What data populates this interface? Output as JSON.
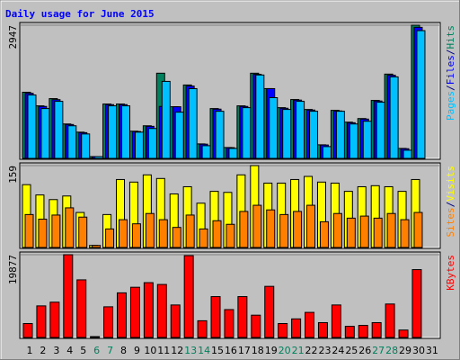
{
  "title": "Daily usage for June 2015",
  "legend_separator": "/",
  "categories": [
    "1",
    "2",
    "3",
    "4",
    "5",
    "6",
    "7",
    "8",
    "9",
    "10",
    "11",
    "12",
    "13",
    "14",
    "15",
    "16",
    "17",
    "18",
    "19",
    "20",
    "21",
    "22",
    "23",
    "24",
    "25",
    "26",
    "27",
    "28",
    "29",
    "30",
    "31"
  ],
  "category_colors": [
    "#000000",
    "#000000",
    "#000000",
    "#000000",
    "#000000",
    "#00805c",
    "#00805c",
    "#000000",
    "#000000",
    "#000000",
    "#000000",
    "#000000",
    "#00805c",
    "#00805c",
    "#000000",
    "#000000",
    "#000000",
    "#000000",
    "#000000",
    "#00805c",
    "#00805c",
    "#000000",
    "#000000",
    "#000000",
    "#000000",
    "#000000",
    "#00805c",
    "#00805c",
    "#000000",
    "#000000",
    "#000000"
  ],
  "chart_data": [
    {
      "type": "bar",
      "ylim": [
        0,
        2947
      ],
      "yticks": [
        2947
      ],
      "grid": true,
      "series": [
        {
          "name": "Hits",
          "color": "#00805c",
          "values": [
            1464,
            1163,
            1323,
            762,
            581,
            40,
            1203,
            1203,
            602,
            722,
            1885,
            1143,
            1624,
            321,
            1103,
            241,
            1163,
            1885,
            1544,
            1123,
            1303,
            1083,
            301,
            1063,
            802,
            882,
            1283,
            1865,
            221,
            2947,
            null
          ]
        },
        {
          "name": "Files",
          "color": "#0000ff",
          "values": [
            1440,
            1150,
            1300,
            750,
            570,
            40,
            1190,
            1190,
            595,
            710,
            1150,
            1143,
            1600,
            315,
            1090,
            238,
            1150,
            1860,
            1544,
            1110,
            1290,
            1070,
            296,
            1050,
            790,
            870,
            1270,
            1840,
            215,
            2900,
            null
          ]
        },
        {
          "name": "Pages",
          "color": "#00c0ff",
          "values": [
            1403,
            1103,
            1263,
            722,
            541,
            40,
            1163,
            1163,
            581,
            662,
            1704,
            1023,
            1544,
            281,
            1043,
            221,
            1123,
            1845,
            1344,
            1083,
            1263,
            1043,
            261,
            1043,
            762,
            822,
            1243,
            1804,
            181,
            2827,
            null
          ]
        }
      ]
    },
    {
      "type": "bar",
      "ylim": [
        0,
        159
      ],
      "yticks": [
        159
      ],
      "grid": true,
      "series": [
        {
          "name": "Visits",
          "color": "#ffff00",
          "values": [
            122,
            102,
            93,
            100,
            68,
            4,
            64,
            132,
            127,
            141,
            134,
            104,
            118,
            86,
            109,
            107,
            141,
            159,
            125,
            125,
            132,
            138,
            127,
            125,
            109,
            118,
            120,
            118,
            109,
            132,
            null
          ]
        },
        {
          "name": "Sites",
          "color": "#ff8000",
          "values": [
            64,
            55,
            63,
            77,
            59,
            4,
            36,
            54,
            46,
            66,
            54,
            39,
            63,
            36,
            52,
            45,
            70,
            82,
            73,
            64,
            70,
            82,
            50,
            66,
            57,
            61,
            57,
            66,
            54,
            68,
            null
          ]
        }
      ]
    },
    {
      "type": "bar",
      "ylim": [
        0,
        19877
      ],
      "yticks": [
        19877
      ],
      "grid": true,
      "series": [
        {
          "name": "KBytes",
          "color": "#ff0000",
          "values": [
            3350,
            7590,
            8480,
            19877,
            13840,
            0,
            7370,
            10720,
            12060,
            13170,
            12730,
            7810,
            19650,
            4020,
            9820,
            6700,
            9820,
            5360,
            12280,
            3350,
            4470,
            6030,
            3570,
            7810,
            2680,
            2900,
            3570,
            8040,
            1790,
            16300,
            null
          ]
        }
      ]
    }
  ]
}
